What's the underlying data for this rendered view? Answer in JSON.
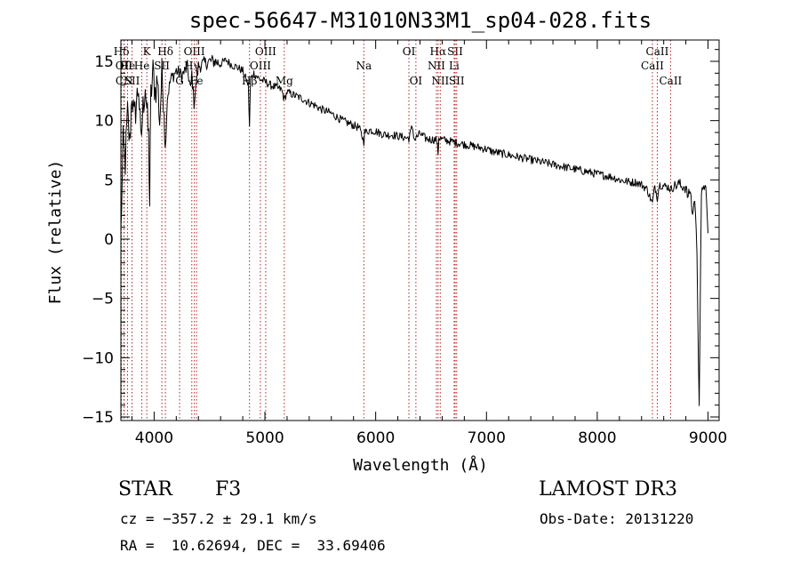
{
  "chart_data": {
    "type": "line",
    "title": "spec-56647-M31010N33M1_sp04-028.fits",
    "xlabel": "Wavelength (Å)",
    "ylabel": "Flux (relative)",
    "xlim": [
      3700,
      9100
    ],
    "ylim": [
      -15.3,
      16.8
    ],
    "xticks": [
      4000,
      5000,
      6000,
      7000,
      8000,
      9000
    ],
    "xtick_labels": [
      "4000",
      "5000",
      "6000",
      "7000",
      "8000",
      "9000"
    ],
    "yticks": [
      15,
      10,
      5,
      0,
      -5,
      -10,
      -15
    ],
    "ytick_labels": [
      "15",
      "10",
      "5",
      "0",
      "−5",
      "−10",
      "−15"
    ],
    "series": [
      {
        "name": "flux",
        "x": [
          3700,
          3720,
          3740,
          3760,
          3780,
          3800,
          3820,
          3840,
          3860,
          3880,
          3900,
          3920,
          3940,
          3950,
          3960,
          3970,
          3990,
          4010,
          4030,
          4050,
          4070,
          4090,
          4100,
          4120,
          4150,
          4200,
          4250,
          4300,
          4330,
          4340,
          4360,
          4400,
          4450,
          4500,
          4550,
          4600,
          4650,
          4700,
          4750,
          4800,
          4850,
          4861,
          4870,
          4900,
          4950,
          5000,
          5050,
          5100,
          5150,
          5175,
          5200,
          5250,
          5300,
          5350,
          5400,
          5450,
          5500,
          5550,
          5600,
          5650,
          5700,
          5750,
          5800,
          5850,
          5880,
          5893,
          5900,
          5950,
          6000,
          6050,
          6100,
          6150,
          6200,
          6250,
          6300,
          6330,
          6350,
          6400,
          6450,
          6500,
          6550,
          6563,
          6570,
          6600,
          6650,
          6700,
          6750,
          6800,
          6850,
          6900,
          6950,
          7000,
          7050,
          7100,
          7150,
          7200,
          7250,
          7300,
          7350,
          7400,
          7450,
          7500,
          7550,
          7600,
          7650,
          7700,
          7750,
          7800,
          7850,
          7900,
          7950,
          8000,
          8050,
          8100,
          8150,
          8200,
          8250,
          8300,
          8350,
          8400,
          8450,
          8498,
          8520,
          8542,
          8560,
          8600,
          8640,
          8662,
          8680,
          8700,
          8720,
          8740,
          8760,
          8780,
          8800,
          8820,
          8840,
          8860,
          8880,
          8900,
          8920,
          8940,
          8960,
          8980,
          9000
        ],
        "y": [
          0.5,
          8.0,
          6.5,
          10.5,
          8.0,
          12.5,
          10.0,
          11.5,
          13.0,
          8.0,
          11.0,
          13.2,
          10.0,
          8.5,
          3.0,
          12.0,
          14.0,
          12.5,
          13.5,
          10.0,
          13.8,
          11.5,
          7.5,
          12.0,
          13.5,
          14.2,
          13.8,
          14.5,
          12.5,
          14.0,
          11.5,
          14.6,
          14.8,
          15.0,
          15.0,
          14.8,
          15.1,
          14.7,
          14.5,
          14.2,
          13.0,
          9.5,
          13.5,
          14.0,
          13.5,
          13.3,
          13.0,
          12.8,
          12.6,
          11.8,
          12.4,
          12.2,
          12.0,
          11.8,
          11.5,
          11.3,
          11.0,
          10.8,
          10.6,
          10.3,
          10.0,
          9.8,
          9.6,
          9.4,
          8.6,
          8.2,
          9.0,
          9.2,
          9.1,
          8.9,
          8.8,
          8.8,
          8.7,
          8.6,
          8.5,
          9.5,
          8.4,
          8.9,
          8.5,
          8.4,
          8.4,
          7.2,
          8.6,
          8.4,
          8.3,
          8.2,
          8.1,
          8.0,
          7.9,
          7.8,
          7.7,
          7.6,
          7.4,
          7.3,
          7.2,
          7.1,
          7.0,
          6.9,
          6.8,
          6.7,
          6.6,
          6.5,
          6.4,
          6.3,
          6.2,
          6.1,
          6.0,
          5.9,
          5.8,
          5.7,
          5.6,
          5.5,
          5.4,
          5.3,
          5.2,
          5.0,
          4.9,
          4.8,
          4.8,
          4.6,
          4.2,
          3.0,
          4.5,
          3.5,
          4.6,
          4.5,
          4.4,
          4.2,
          4.3,
          4.6,
          4.5,
          4.7,
          4.4,
          4.5,
          4.3,
          3.5,
          4.2,
          2.0,
          3.5,
          -1.0,
          -14.0,
          3.5,
          4.8,
          4.0,
          0.5
        ]
      }
    ],
    "lines": [
      {
        "label": "Hδ",
        "x": 3705,
        "row": 1
      },
      {
        "label": "OII",
        "x": 3727,
        "row": 2
      },
      {
        "label": "CN",
        "x": 3730,
        "row": 3
      },
      {
        "label": "He",
        "x": 3760,
        "row": 2
      },
      {
        "label": "SII",
        "x": 3800,
        "row": 3
      },
      {
        "label": "K",
        "x": 3934,
        "row": 1
      },
      {
        "label": "He",
        "x": 3889,
        "row": 2
      },
      {
        "label": "Hδ",
        "x": 4102,
        "row": 1
      },
      {
        "label": "SII",
        "x": 4070,
        "row": 2
      },
      {
        "label": "G",
        "x": 4230,
        "row": 3
      },
      {
        "label": "OIII",
        "x": 4363,
        "row": 1
      },
      {
        "label": "Hγ",
        "x": 4340,
        "row": 2
      },
      {
        "label": "Fe",
        "x": 4383,
        "row": 3
      },
      {
        "label": "OIII",
        "x": 5007,
        "row": 1
      },
      {
        "label": "OIII",
        "x": 4959,
        "row": 2
      },
      {
        "label": "Hβ",
        "x": 4861,
        "row": 3
      },
      {
        "label": "Mg",
        "x": 5175,
        "row": 3
      },
      {
        "label": "Na",
        "x": 5893,
        "row": 2
      },
      {
        "label": "OI",
        "x": 6300,
        "row": 1
      },
      {
        "label": "OI",
        "x": 6363,
        "row": 3
      },
      {
        "label": "Hα",
        "x": 6563,
        "row": 1
      },
      {
        "label": "NII",
        "x": 6548,
        "row": 2
      },
      {
        "label": "NII",
        "x": 6583,
        "row": 3
      },
      {
        "label": "SII",
        "x": 6717,
        "row": 1
      },
      {
        "label": "Li",
        "x": 6708,
        "row": 2
      },
      {
        "label": "SII",
        "x": 6731,
        "row": 3
      },
      {
        "label": "CaII",
        "x": 8542,
        "row": 1
      },
      {
        "label": "CaII",
        "x": 8498,
        "row": 2
      },
      {
        "label": "CaII",
        "x": 8662,
        "row": 3
      }
    ]
  },
  "info": {
    "object_class": "STAR",
    "subclass": "F3",
    "survey": "LAMOST DR3",
    "cz": "cz = −357.2 ± 29.1 km/s",
    "obs_date": "Obs-Date: 20131220",
    "coords": "RA =  10.62694, DEC =  33.69406"
  },
  "colors": {
    "line_marker": "#b22222",
    "spectrum": "#000000"
  }
}
